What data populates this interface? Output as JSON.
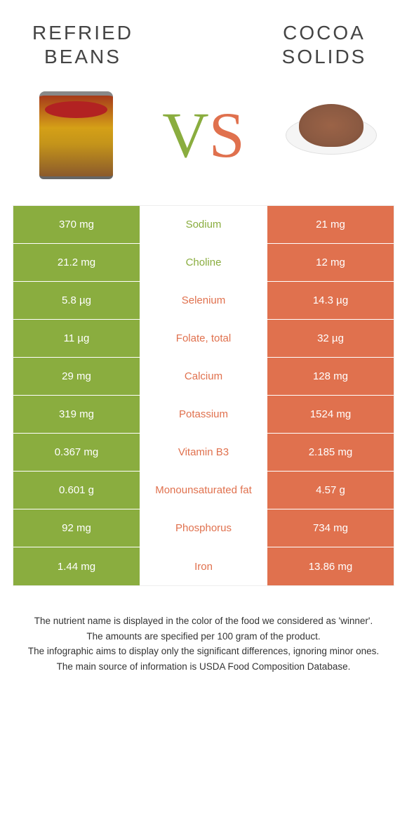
{
  "colors": {
    "left": "#8aad3f",
    "right": "#e0714e",
    "text_dark": "#444444",
    "footer_text": "#333333",
    "white": "#ffffff"
  },
  "header": {
    "left_title": "REFRIED\nBEANS",
    "right_title": "COCOA\nSOLIDS",
    "vs_v": "V",
    "vs_s": "S"
  },
  "rows": [
    {
      "left": "370 mg",
      "label": "Sodium",
      "right": "21 mg",
      "winner": "left"
    },
    {
      "left": "21.2 mg",
      "label": "Choline",
      "right": "12 mg",
      "winner": "left"
    },
    {
      "left": "5.8 µg",
      "label": "Selenium",
      "right": "14.3 µg",
      "winner": "right"
    },
    {
      "left": "11 µg",
      "label": "Folate, total",
      "right": "32 µg",
      "winner": "right"
    },
    {
      "left": "29 mg",
      "label": "Calcium",
      "right": "128 mg",
      "winner": "right"
    },
    {
      "left": "319 mg",
      "label": "Potassium",
      "right": "1524 mg",
      "winner": "right"
    },
    {
      "left": "0.367 mg",
      "label": "Vitamin B3",
      "right": "2.185 mg",
      "winner": "right"
    },
    {
      "left": "0.601 g",
      "label": "Monounsaturated fat",
      "right": "4.57 g",
      "winner": "right"
    },
    {
      "left": "92 mg",
      "label": "Phosphorus",
      "right": "734 mg",
      "winner": "right"
    },
    {
      "left": "1.44 mg",
      "label": "Iron",
      "right": "13.86 mg",
      "winner": "right"
    }
  ],
  "footer": {
    "line1": "The nutrient name is displayed in the color of the food we considered as 'winner'.",
    "line2": "The amounts are specified per 100 gram of the product.",
    "line3": "The infographic aims to display only the significant differences, ignoring minor ones.",
    "line4": "The main source of information is USDA Food Composition Database."
  }
}
